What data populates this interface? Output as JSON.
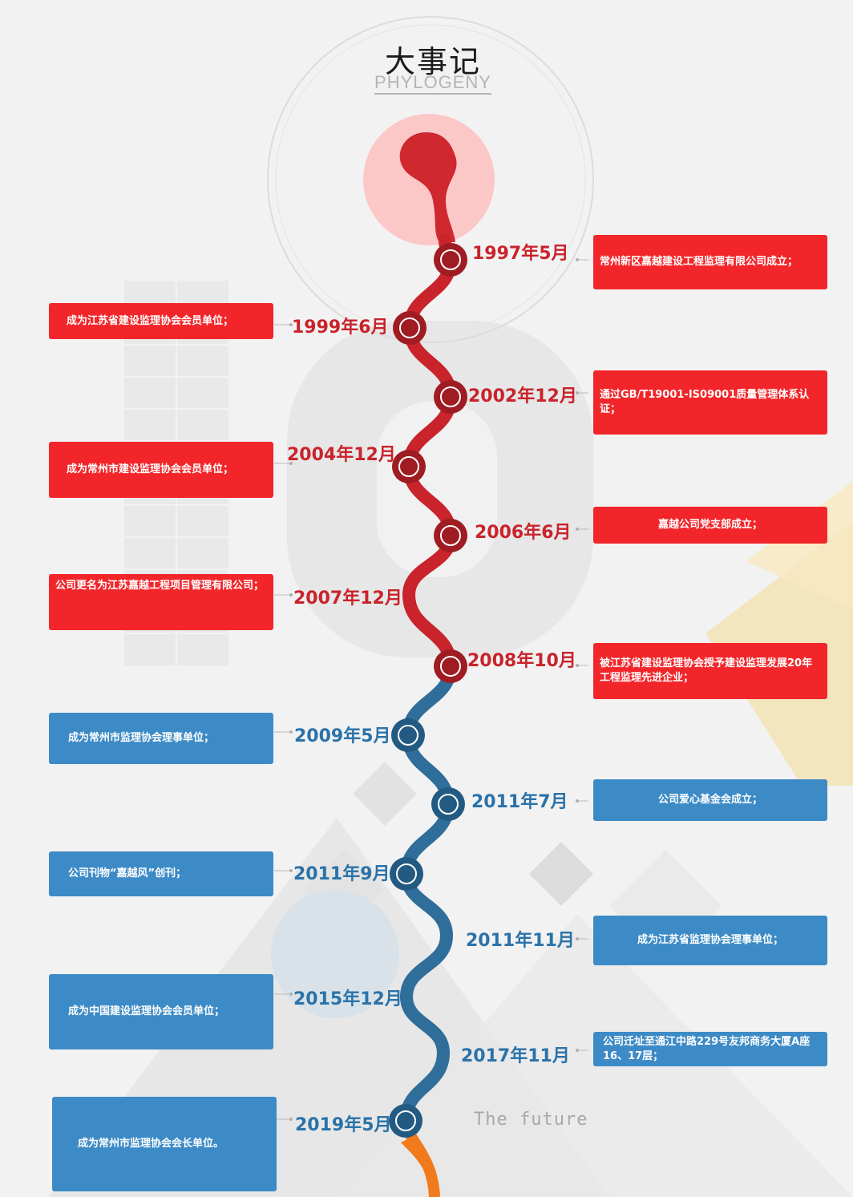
{
  "header": {
    "title": "大事记",
    "subtitle": "PHYLOGENY"
  },
  "future_label": "The future",
  "colors": {
    "red": "#f2262a",
    "red_dark": "#c9232b",
    "blue": "#3d8bc6",
    "blue_dark": "#2a72a9",
    "orange": "#f07a1c"
  },
  "events": [
    {
      "date": "1997年5月",
      "text": "常州新区嘉越建设工程监理有限公司成立；",
      "color": "red"
    },
    {
      "date": "1999年6月",
      "text": "成为江苏省建设监理协会会员单位；",
      "color": "red"
    },
    {
      "date": "2002年12月",
      "text": "通过GB/T19001-IS09001质量管理体系认证；",
      "color": "red"
    },
    {
      "date": "2004年12月",
      "text": "成为常州市建设监理协会会员单位；",
      "color": "red"
    },
    {
      "date": "2006年6月",
      "text": "嘉越公司党支部成立；",
      "color": "red"
    },
    {
      "date": "2007年12月",
      "text": "公司更名为江苏嘉越工程项目管理有限公司；",
      "color": "red"
    },
    {
      "date": "2008年10月",
      "text": "被江苏省建设监理协会授予建设监理发展20年工程监理先进企业；",
      "color": "red"
    },
    {
      "date": "2009年5月",
      "text": "成为常州市监理协会理事单位；",
      "color": "blue"
    },
    {
      "date": "2011年7月",
      "text": "公司爱心基金会成立；",
      "color": "blue"
    },
    {
      "date": "2011年9月",
      "text": "公司刊物“嘉越风”创刊；",
      "color": "blue"
    },
    {
      "date": "2011年11月",
      "text": "成为江苏省监理协会理事单位；",
      "color": "blue"
    },
    {
      "date": "2015年12月",
      "text": "成为中国建设监理协会会员单位；",
      "color": "blue"
    },
    {
      "date": "2017年11月",
      "text": "公司迁址至通江中路229号友邦商务大厦A座16、17层；",
      "color": "blue"
    },
    {
      "date": "2019年5月",
      "text": "成为常州市监理协会会长单位。",
      "color": "blue"
    }
  ]
}
